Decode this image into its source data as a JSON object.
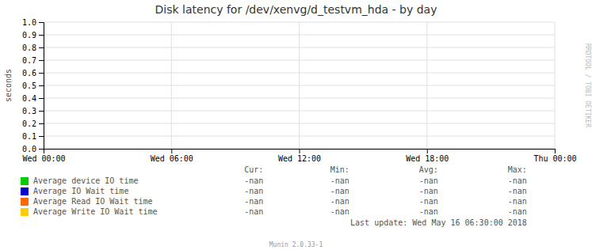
{
  "chart_data": {
    "type": "line",
    "title": "Disk latency for /dev/xenvg/d_testvm_hda - by day",
    "y_label": "seconds",
    "categories": [
      "Wed 00:00",
      "Wed 06:00",
      "Wed 12:00",
      "Wed 18:00",
      "Thu 00:00"
    ],
    "series": [
      {
        "name": "Average device IO time",
        "color": "#00cc00",
        "values": [
          null,
          null,
          null,
          null,
          null
        ],
        "table_values": [
          "-nan",
          "-nan",
          "-nan",
          "-nan"
        ]
      },
      {
        "name": "Average IO Wait time",
        "color": "#0000cc",
        "values": [
          null,
          null,
          null,
          null,
          null
        ],
        "table_values": [
          "-nan",
          "-nan",
          "-nan",
          "-nan"
        ]
      },
      {
        "name": "Average Read IO Wait time",
        "color": "#ff6600",
        "values": [
          null,
          null,
          null,
          null,
          null
        ],
        "table_values": [
          "-nan",
          "-nan",
          "-nan",
          "-nan"
        ]
      },
      {
        "name": "Average Write IO Wait time",
        "color": "#ffcc00",
        "values": [
          null,
          null,
          null,
          null,
          null
        ],
        "table_values": [
          "-nan",
          "-nan",
          "-nan",
          "-nan"
        ]
      }
    ],
    "table_headers": [
      "Cur:",
      "Min:",
      "Avg:",
      "Max:"
    ],
    "ylim": [
      0.0,
      1.0
    ],
    "yticks": [
      {
        "value": 0.0,
        "label": "0.0"
      },
      {
        "value": 0.1,
        "label": "0.1"
      },
      {
        "value": 0.2,
        "label": "0.2"
      },
      {
        "value": 0.3,
        "label": "0.3"
      },
      {
        "value": 0.4,
        "label": "0.4"
      },
      {
        "value": 0.5,
        "label": "0.5"
      },
      {
        "value": 0.6,
        "label": "0.6"
      },
      {
        "value": 0.7,
        "label": "0.7"
      },
      {
        "value": 0.8,
        "label": "0.8"
      },
      {
        "value": 0.9,
        "label": "0.9"
      },
      {
        "value": 1.0,
        "label": "1.0"
      }
    ],
    "grid": true,
    "annotations": [
      "RRDTOOL / TOBI OETIKER",
      "Last update: Wed May 16 06:30:00 2018",
      "Munin 2.0.33-1"
    ]
  }
}
